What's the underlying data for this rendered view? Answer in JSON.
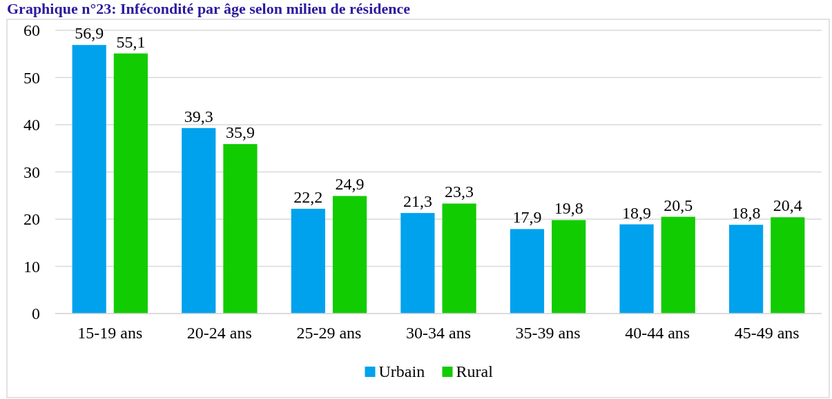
{
  "chart_data": {
    "type": "bar",
    "title": "Graphique n°23: Infécondité par âge selon milieu de résidence",
    "categories": [
      "15-19 ans",
      "20-24 ans",
      "25-29 ans",
      "30-34 ans",
      "35-39 ans",
      "40-44 ans",
      "45-49 ans"
    ],
    "series": [
      {
        "name": "Urbain",
        "color": "#00a2ed",
        "values": [
          56.9,
          39.3,
          22.2,
          21.3,
          17.9,
          18.9,
          18.8
        ],
        "value_labels": [
          "56,9",
          "39,3",
          "22,2",
          "21,3",
          "17,9",
          "18,9",
          "18,8"
        ]
      },
      {
        "name": "Rural",
        "color": "#11cc00",
        "values": [
          55.1,
          35.9,
          24.9,
          23.3,
          19.8,
          20.5,
          20.4
        ],
        "value_labels": [
          "55,1",
          "35,9",
          "24,9",
          "23,3",
          "19,8",
          "20,5",
          "20,4"
        ]
      }
    ],
    "ylim": [
      0,
      60
    ],
    "yticks": [
      0,
      10,
      20,
      30,
      40,
      50,
      60
    ],
    "grid": "y",
    "legend": "bottom"
  }
}
